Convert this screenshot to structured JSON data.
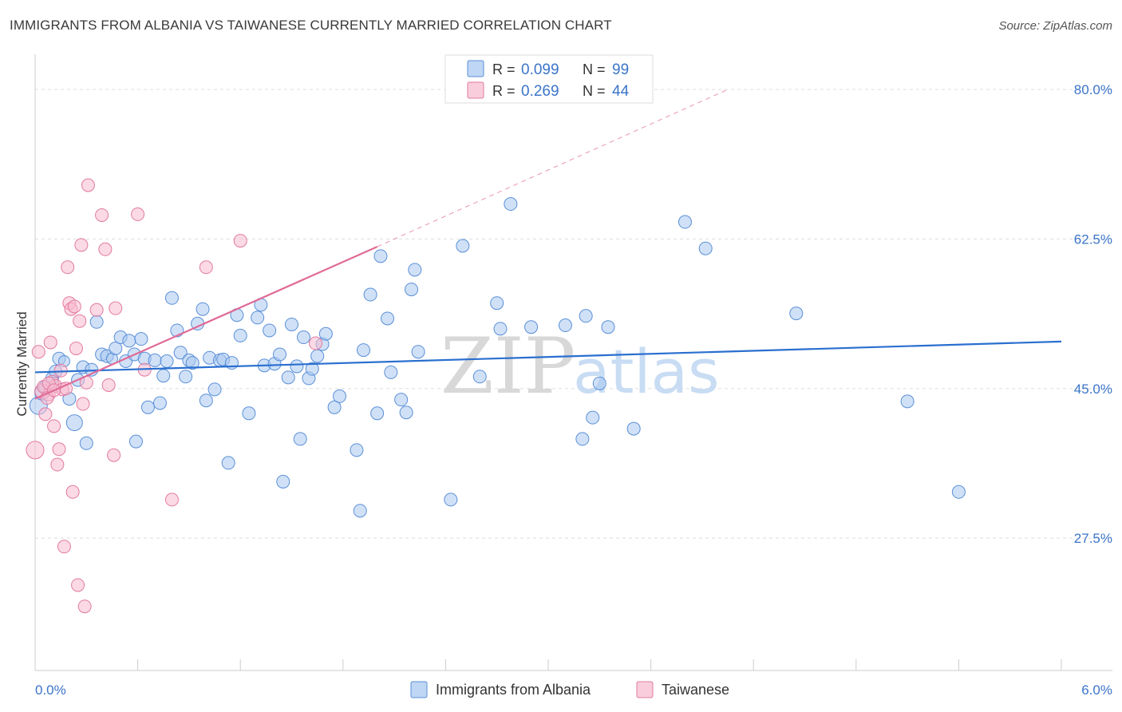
{
  "title": "IMMIGRANTS FROM ALBANIA VS TAIWANESE CURRENTLY MARRIED CORRELATION CHART",
  "source": "Source: ZipAtlas.com",
  "watermark": {
    "zip": "ZIP",
    "atlas": "atlas"
  },
  "colors": {
    "albania_fill": "#aac8f0",
    "albania_stroke": "#5a8fd8",
    "albania_line": "#2a6fcf",
    "taiwanese_fill": "#f7bcd0",
    "taiwanese_stroke": "#e27aa0",
    "taiwanese_line": "#e06a96",
    "grid": "#dddddd",
    "axis_label": "#3b74c9"
  },
  "legend": {
    "rows": [
      {
        "r_label": "R =",
        "r_value": "0.099",
        "n_label": "N =",
        "n_value": "99"
      },
      {
        "r_label": "R =",
        "r_value": "0.269",
        "n_label": "N =",
        "n_value": "44"
      }
    ]
  },
  "chart_data": {
    "type": "scatter",
    "ylabel": "Currently Married",
    "xlabel": "",
    "xlim": [
      0,
      6
    ],
    "ylim": [
      12,
      83
    ],
    "y_ticks": [
      {
        "value": 80,
        "label": "80.0%"
      },
      {
        "value": 62.5,
        "label": "62.5%"
      },
      {
        "value": 45,
        "label": "45.0%"
      },
      {
        "value": 27.5,
        "label": "27.5%"
      }
    ],
    "x_tick_labels": {
      "min": "0.0%",
      "max": "6.0%"
    },
    "x_minor_ticks": [
      0,
      0.6,
      1.2,
      1.8,
      2.4,
      3.0,
      3.6,
      4.2,
      4.8,
      5.4,
      6.0
    ],
    "series": [
      {
        "name": "Immigrants from Albania",
        "color_key": "albania",
        "trend": {
          "x0": 0,
          "y0": 46.9,
          "x1": 6,
          "y1": 50.5,
          "dashed_extension": false
        },
        "points": [
          [
            0.02,
            43.0,
            11
          ],
          [
            0.04,
            44.5,
            9
          ],
          [
            0.06,
            45.2,
            8
          ],
          [
            0.1,
            46.2,
            8
          ],
          [
            0.12,
            47.0,
            8
          ],
          [
            0.14,
            48.5,
            8
          ],
          [
            0.17,
            48.2,
            7
          ],
          [
            0.2,
            43.8,
            8
          ],
          [
            0.23,
            41.0,
            10
          ],
          [
            0.25,
            46.0,
            8
          ],
          [
            0.28,
            47.5,
            8
          ],
          [
            0.3,
            38.6,
            8
          ],
          [
            0.33,
            47.2,
            8
          ],
          [
            0.36,
            52.8,
            8
          ],
          [
            0.39,
            49.0,
            8
          ],
          [
            0.42,
            48.8,
            8
          ],
          [
            0.45,
            48.5,
            7
          ],
          [
            0.47,
            49.7,
            8
          ],
          [
            0.5,
            51.0,
            8
          ],
          [
            0.53,
            48.2,
            8
          ],
          [
            0.55,
            50.6,
            8
          ],
          [
            0.58,
            49.0,
            8
          ],
          [
            0.59,
            38.8,
            8
          ],
          [
            0.62,
            50.8,
            8
          ],
          [
            0.64,
            48.5,
            8
          ],
          [
            0.66,
            42.8,
            8
          ],
          [
            0.7,
            48.3,
            8
          ],
          [
            0.73,
            43.3,
            8
          ],
          [
            0.75,
            46.5,
            8
          ],
          [
            0.77,
            48.2,
            8
          ],
          [
            0.8,
            55.6,
            8
          ],
          [
            0.83,
            51.8,
            8
          ],
          [
            0.85,
            49.2,
            8
          ],
          [
            0.88,
            46.4,
            8
          ],
          [
            0.9,
            48.3,
            8
          ],
          [
            0.92,
            48.0,
            8
          ],
          [
            0.95,
            52.6,
            8
          ],
          [
            0.98,
            54.3,
            8
          ],
          [
            1.0,
            43.6,
            8
          ],
          [
            1.02,
            48.6,
            8
          ],
          [
            1.05,
            44.9,
            8
          ],
          [
            1.08,
            48.3,
            8
          ],
          [
            1.1,
            48.4,
            8
          ],
          [
            1.13,
            36.3,
            8
          ],
          [
            1.15,
            48.0,
            8
          ],
          [
            1.18,
            53.6,
            8
          ],
          [
            1.2,
            51.2,
            8
          ],
          [
            1.25,
            42.1,
            8
          ],
          [
            1.3,
            53.3,
            8
          ],
          [
            1.32,
            54.8,
            8
          ],
          [
            1.34,
            47.7,
            8
          ],
          [
            1.37,
            51.8,
            8
          ],
          [
            1.4,
            47.9,
            8
          ],
          [
            1.43,
            49.0,
            8
          ],
          [
            1.45,
            34.1,
            8
          ],
          [
            1.48,
            46.3,
            8
          ],
          [
            1.5,
            52.5,
            8
          ],
          [
            1.53,
            47.6,
            8
          ],
          [
            1.55,
            39.1,
            8
          ],
          [
            1.57,
            51.0,
            8
          ],
          [
            1.6,
            46.2,
            8
          ],
          [
            1.62,
            47.3,
            8
          ],
          [
            1.65,
            48.8,
            8
          ],
          [
            1.68,
            50.2,
            8
          ],
          [
            1.7,
            51.4,
            8
          ],
          [
            1.75,
            42.8,
            8
          ],
          [
            1.78,
            44.1,
            8
          ],
          [
            1.88,
            37.8,
            8
          ],
          [
            1.9,
            30.7,
            8
          ],
          [
            1.92,
            49.5,
            8
          ],
          [
            1.96,
            56.0,
            8
          ],
          [
            2.0,
            42.1,
            8
          ],
          [
            2.02,
            60.5,
            8
          ],
          [
            2.06,
            53.2,
            8
          ],
          [
            2.08,
            46.9,
            8
          ],
          [
            2.14,
            43.7,
            8
          ],
          [
            2.17,
            42.2,
            8
          ],
          [
            2.2,
            56.6,
            8
          ],
          [
            2.22,
            58.9,
            8
          ],
          [
            2.24,
            49.3,
            8
          ],
          [
            2.43,
            32.0,
            8
          ],
          [
            2.5,
            61.7,
            8
          ],
          [
            2.6,
            46.4,
            8
          ],
          [
            2.7,
            55.0,
            8
          ],
          [
            2.72,
            52.0,
            8
          ],
          [
            2.78,
            66.6,
            8
          ],
          [
            2.9,
            52.2,
            8
          ],
          [
            3.1,
            52.4,
            8
          ],
          [
            3.2,
            39.1,
            8
          ],
          [
            3.22,
            53.5,
            8
          ],
          [
            3.26,
            41.6,
            8
          ],
          [
            3.3,
            45.6,
            8
          ],
          [
            3.35,
            52.2,
            8
          ],
          [
            3.5,
            40.3,
            8
          ],
          [
            3.8,
            64.5,
            8
          ],
          [
            3.92,
            61.4,
            8
          ],
          [
            4.45,
            53.8,
            8
          ],
          [
            5.1,
            43.5,
            8
          ],
          [
            5.4,
            32.9,
            8
          ]
        ]
      },
      {
        "name": "Taiwanese",
        "color_key": "taiwanese",
        "trend": {
          "x0": 0,
          "y0": 43.8,
          "x1": 2.0,
          "y1": 61.6,
          "dashed_extension": true,
          "dash_x1": 4.05,
          "dash_y1": 80.0
        },
        "points": [
          [
            0.0,
            37.8,
            11
          ],
          [
            0.02,
            49.3,
            8
          ],
          [
            0.04,
            44.7,
            9
          ],
          [
            0.06,
            42.0,
            8
          ],
          [
            0.08,
            44.3,
            8
          ],
          [
            0.09,
            50.4,
            8
          ],
          [
            0.1,
            45.8,
            8
          ],
          [
            0.11,
            40.6,
            8
          ],
          [
            0.12,
            45.3,
            8
          ],
          [
            0.13,
            36.1,
            8
          ],
          [
            0.14,
            37.9,
            8
          ],
          [
            0.15,
            47.1,
            8
          ],
          [
            0.16,
            44.9,
            8
          ],
          [
            0.17,
            26.5,
            8
          ],
          [
            0.18,
            45.0,
            8
          ],
          [
            0.19,
            59.2,
            8
          ],
          [
            0.2,
            55.0,
            8
          ],
          [
            0.21,
            54.3,
            8
          ],
          [
            0.22,
            32.9,
            8
          ],
          [
            0.23,
            54.6,
            8
          ],
          [
            0.24,
            49.7,
            8
          ],
          [
            0.25,
            22.0,
            8
          ],
          [
            0.26,
            52.9,
            8
          ],
          [
            0.27,
            61.8,
            8
          ],
          [
            0.28,
            43.2,
            8
          ],
          [
            0.29,
            19.5,
            8
          ],
          [
            0.3,
            45.7,
            8
          ],
          [
            0.31,
            68.8,
            8
          ],
          [
            0.36,
            54.2,
            8
          ],
          [
            0.39,
            65.3,
            8
          ],
          [
            0.41,
            61.3,
            8
          ],
          [
            0.43,
            45.4,
            8
          ],
          [
            0.46,
            37.2,
            8
          ],
          [
            0.47,
            54.4,
            8
          ],
          [
            0.6,
            65.4,
            8
          ],
          [
            0.64,
            47.2,
            8
          ],
          [
            0.8,
            32.0,
            8
          ],
          [
            1.0,
            59.2,
            8
          ],
          [
            1.2,
            62.3,
            8
          ],
          [
            1.64,
            50.3,
            8
          ],
          [
            0.05,
            45.2,
            8
          ],
          [
            0.07,
            43.9,
            8
          ],
          [
            0.08,
            45.6,
            8
          ],
          [
            0.11,
            44.8,
            8
          ]
        ]
      }
    ],
    "bottom_legend": [
      {
        "label": "Immigrants from Albania",
        "color_key": "albania"
      },
      {
        "label": "Taiwanese",
        "color_key": "taiwanese"
      }
    ]
  }
}
